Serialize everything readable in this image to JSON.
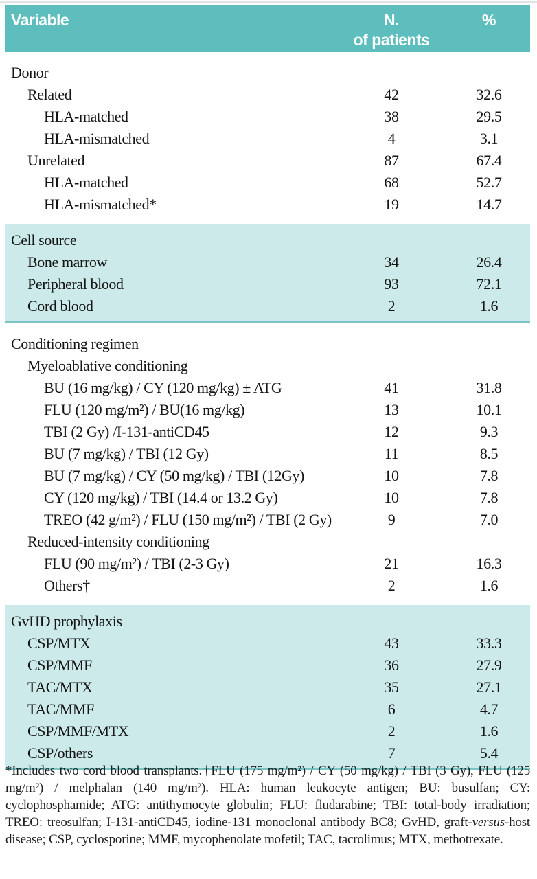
{
  "colors": {
    "header_bg": "#5ebdbd",
    "section_bg": "#cdeaea",
    "section_border": "#79c6c6"
  },
  "table": {
    "header": {
      "variable": "Variable",
      "n_line1": "N.",
      "n_line2": "of patients",
      "pct": "%"
    },
    "sections": [
      {
        "shaded": false,
        "rows": [
          {
            "label": "Donor",
            "indent": 0,
            "n": "",
            "pct": ""
          },
          {
            "label": "Related",
            "indent": 1,
            "n": "42",
            "pct": "32.6"
          },
          {
            "label": "HLA-matched",
            "indent": 2,
            "n": "38",
            "pct": "29.5"
          },
          {
            "label": "HLA-mismatched",
            "indent": 2,
            "n": "4",
            "pct": "3.1"
          },
          {
            "label": "Unrelated",
            "indent": 1,
            "n": "87",
            "pct": "67.4"
          },
          {
            "label": "HLA-matched",
            "indent": 2,
            "n": "68",
            "pct": "52.7"
          },
          {
            "label": "HLA-mismatched*",
            "indent": 2,
            "n": "19",
            "pct": "14.7"
          }
        ]
      },
      {
        "shaded": true,
        "rows": [
          {
            "label": "Cell source",
            "indent": 0,
            "n": "",
            "pct": ""
          },
          {
            "label": "Bone marrow",
            "indent": 1,
            "n": "34",
            "pct": "26.4"
          },
          {
            "label": "Peripheral blood",
            "indent": 1,
            "n": "93",
            "pct": "72.1"
          },
          {
            "label": "Cord blood",
            "indent": 1,
            "n": "2",
            "pct": "1.6"
          }
        ]
      },
      {
        "shaded": false,
        "rows": [
          {
            "label": "Conditioning regimen",
            "indent": 0,
            "n": "",
            "pct": ""
          },
          {
            "label": "Myeloablative conditioning",
            "indent": 1,
            "n": "",
            "pct": ""
          },
          {
            "label": "BU (16 mg/kg) / CY (120 mg/kg) ± ATG",
            "indent": 2,
            "n": "41",
            "pct": "31.8"
          },
          {
            "label": "FLU (120 mg/m²) / BU(16 mg/kg)",
            "indent": 2,
            "n": "13",
            "pct": "10.1"
          },
          {
            "label": "TBI (2 Gy) /I-131-antiCD45",
            "indent": 2,
            "n": "12",
            "pct": "9.3"
          },
          {
            "label": "BU (7 mg/kg) / TBI (12 Gy)",
            "indent": 2,
            "n": "11",
            "pct": "8.5"
          },
          {
            "label": "BU (7 mg/kg) / CY (50 mg/kg) / TBI (12Gy)",
            "indent": 2,
            "n": "10",
            "pct": "7.8"
          },
          {
            "label": "CY (120 mg/kg) / TBI (14.4 or 13.2 Gy)",
            "indent": 2,
            "n": "10",
            "pct": "7.8"
          },
          {
            "label": "TREO (42 g/m²) / FLU (150 mg/m²) / TBI (2 Gy)",
            "indent": 2,
            "n": "9",
            "pct": "7.0"
          },
          {
            "label": "Reduced-intensity conditioning",
            "indent": 1,
            "n": "",
            "pct": ""
          },
          {
            "label": "FLU (90 mg/m²) / TBI (2-3 Gy)",
            "indent": 2,
            "n": "21",
            "pct": "16.3"
          },
          {
            "label": "Others†",
            "indent": 2,
            "n": "2",
            "pct": "1.6"
          }
        ]
      },
      {
        "shaded": true,
        "rows": [
          {
            "label": "GvHD prophylaxis",
            "indent": 0,
            "n": "",
            "pct": ""
          },
          {
            "label": "CSP/MTX",
            "indent": 1,
            "n": "43",
            "pct": "33.3"
          },
          {
            "label": "CSP/MMF",
            "indent": 1,
            "n": "36",
            "pct": "27.9"
          },
          {
            "label": "TAC/MTX",
            "indent": 1,
            "n": "35",
            "pct": "27.1"
          },
          {
            "label": "TAC/MMF",
            "indent": 1,
            "n": "6",
            "pct": "4.7"
          },
          {
            "label": "CSP/MMF/MTX",
            "indent": 1,
            "n": "2",
            "pct": "1.6"
          },
          {
            "label": "CSP/others",
            "indent": 1,
            "n": "7",
            "pct": "5.4"
          }
        ]
      }
    ]
  },
  "footnote": {
    "part1": "*Includes two cord blood transplants.†FLU (175 mg/m²) / CY (50 mg/kg) / TBI (3 Gy), FLU (125 mg/m²) / melphalan (140 mg/m²). HLA: human leukocyte antigen; BU: busulfan; CY: cyclophosphamide; ATG: antithymocyte globulin; FLU: fludarabine; TBI: total-body irradiation; TREO: treosulfan; I-131-antiCD45, iodine-131 monoclonal antibody BC8; GvHD, graft-",
    "italic": "versus",
    "part2": "-host disease; CSP, cyclosporine; MMF, mycophenolate mofetil; TAC, tacrolimus; MTX, methotrexate."
  }
}
